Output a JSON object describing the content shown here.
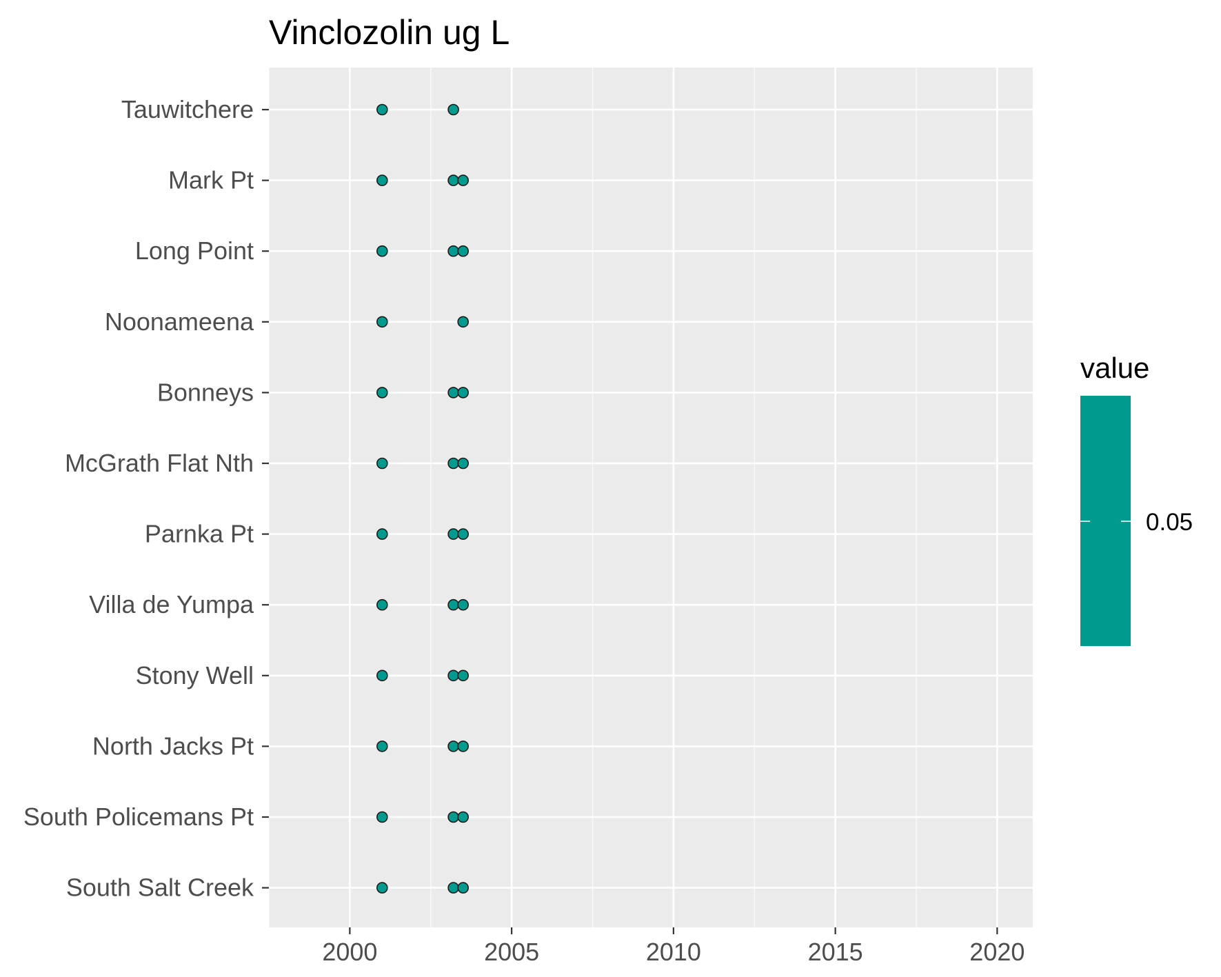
{
  "chart_data": {
    "type": "scatter",
    "title": "Vinclozolin ug L",
    "xlabel": "",
    "ylabel": "",
    "xlim": [
      1997.5,
      2021.1
    ],
    "x_ticks": [
      2000,
      2005,
      2010,
      2015,
      2020
    ],
    "x_tick_labels": [
      "2000",
      "2005",
      "2010",
      "2015",
      "2020"
    ],
    "categories": [
      "Tauwitchere",
      "Mark Pt",
      "Long Point",
      "Noonameena",
      "Bonneys",
      "McGrath Flat Nth",
      "Parnka Pt",
      "Villa de Yumpa",
      "Stony Well",
      "North Jacks Pt",
      "South Policemans Pt",
      "South Salt Creek"
    ],
    "points": [
      {
        "site": "Tauwitchere",
        "x": [
          2001.0,
          2003.2
        ],
        "value": 0.05
      },
      {
        "site": "Mark Pt",
        "x": [
          2001.0,
          2003.2,
          2003.5
        ],
        "value": 0.05
      },
      {
        "site": "Long Point",
        "x": [
          2001.0,
          2003.2,
          2003.5
        ],
        "value": 0.05
      },
      {
        "site": "Noonameena",
        "x": [
          2001.0,
          2003.5
        ],
        "value": 0.05
      },
      {
        "site": "Bonneys",
        "x": [
          2001.0,
          2003.2,
          2003.5
        ],
        "value": 0.05
      },
      {
        "site": "McGrath Flat Nth",
        "x": [
          2001.0,
          2003.2,
          2003.5
        ],
        "value": 0.05
      },
      {
        "site": "Parnka Pt",
        "x": [
          2001.0,
          2003.2,
          2003.5
        ],
        "value": 0.05
      },
      {
        "site": "Villa de Yumpa",
        "x": [
          2001.0,
          2003.2,
          2003.5
        ],
        "value": 0.05
      },
      {
        "site": "Stony Well",
        "x": [
          2001.0,
          2003.2,
          2003.5
        ],
        "value": 0.05
      },
      {
        "site": "North Jacks Pt",
        "x": [
          2001.0,
          2003.2,
          2003.5
        ],
        "value": 0.05
      },
      {
        "site": "South Policemans Pt",
        "x": [
          2001.0,
          2003.2,
          2003.5
        ],
        "value": 0.05
      },
      {
        "site": "South Salt Creek",
        "x": [
          2001.0,
          2003.2,
          2003.5
        ],
        "value": 0.05
      }
    ],
    "legend": {
      "title": "value",
      "label": "0.05",
      "position": "right"
    },
    "colors": {
      "point_fill": "#009a8f",
      "point_stroke": "#1a1a1a",
      "panel_bg": "#ebebeb",
      "grid_major": "#ffffff",
      "colorbar": "#009a8f"
    },
    "grid": true
  }
}
